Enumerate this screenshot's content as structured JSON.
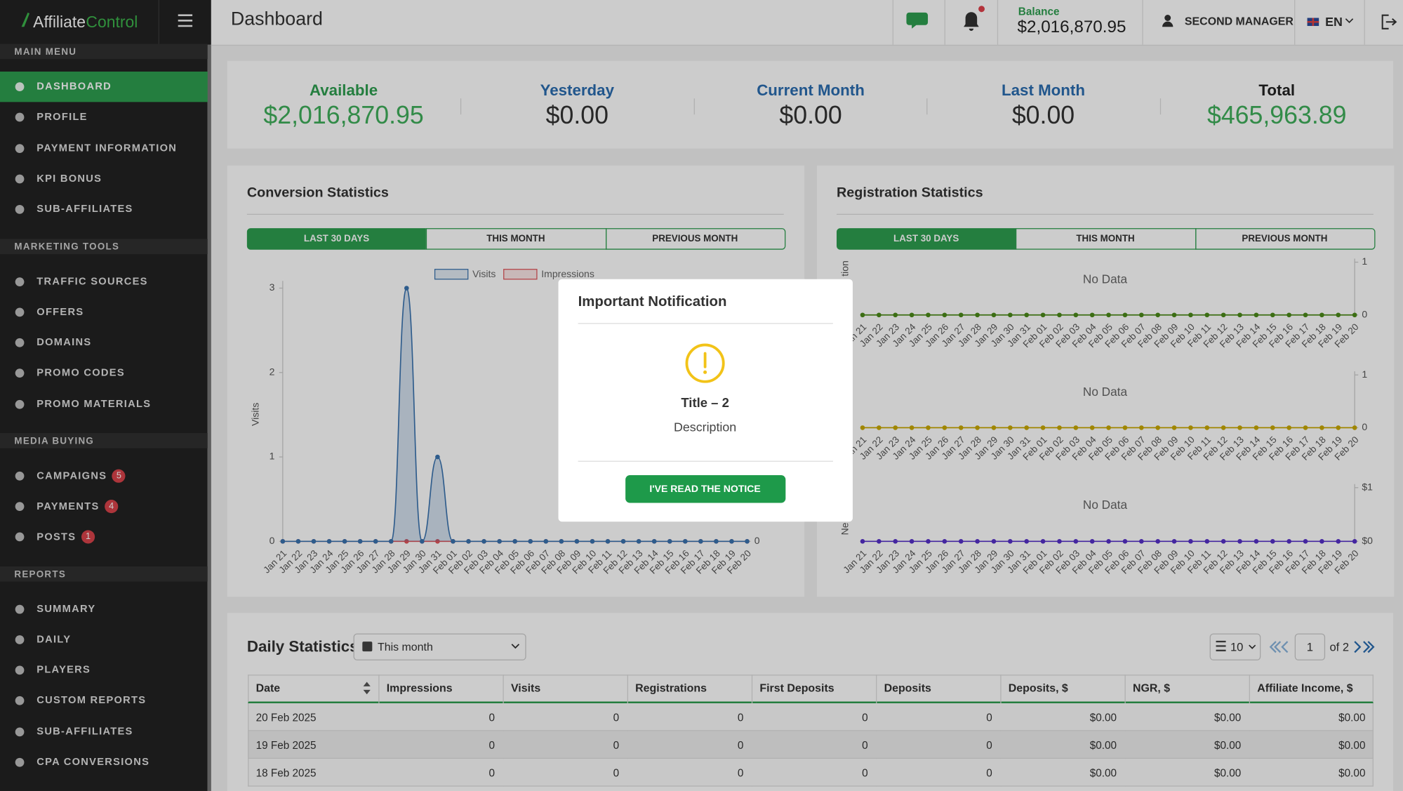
{
  "header": {
    "brand": "Affiliate",
    "brand_accent": "Control",
    "page_title": "Dashboard",
    "balance_label": "Balance",
    "balance": "$2,016,870.95",
    "user": "SECOND MANAGER",
    "language": "EN"
  },
  "sidebar": {
    "sections": [
      {
        "title": "MAIN MENU",
        "items": [
          {
            "label": "DASHBOARD"
          },
          {
            "label": "PROFILE"
          },
          {
            "label": "PAYMENT INFORMATION"
          },
          {
            "label": "KPI BONUS"
          },
          {
            "label": "SUB-AFFILIATES"
          }
        ]
      },
      {
        "title": "MARKETING TOOLS",
        "items": [
          {
            "label": "TRAFFIC SOURCES"
          },
          {
            "label": "OFFERS"
          },
          {
            "label": "DOMAINS"
          },
          {
            "label": "PROMO CODES"
          },
          {
            "label": "PROMO MATERIALS"
          }
        ]
      },
      {
        "title": "MEDIA BUYING",
        "items": [
          {
            "label": "CAMPAIGNS",
            "badge": 5
          },
          {
            "label": "PAYMENTS",
            "badge": 4
          },
          {
            "label": "POSTS",
            "badge": 1
          }
        ]
      },
      {
        "title": "REPORTS",
        "items": [
          {
            "label": "SUMMARY"
          },
          {
            "label": "DAILY"
          },
          {
            "label": "PLAYERS"
          },
          {
            "label": "CUSTOM REPORTS"
          },
          {
            "label": "SUB-AFFILIATES"
          },
          {
            "label": "CPA CONVERSIONS"
          }
        ]
      }
    ]
  },
  "summary": [
    {
      "label": "Available",
      "value": "$2,016,870.95"
    },
    {
      "label": "Yesterday",
      "value": "$0.00"
    },
    {
      "label": "Current Month",
      "value": "$0.00"
    },
    {
      "label": "Last Month",
      "value": "$0.00"
    },
    {
      "label": "Total",
      "value": "$465,963.89"
    }
  ],
  "conversion": {
    "title": "Conversion Statistics",
    "tabs": [
      "LAST 30 DAYS",
      "THIS MONTH",
      "PREVIOUS MONTH"
    ],
    "chart": {
      "type": "line",
      "ylabel": "Visits",
      "x": [
        "Jan 21",
        "Jan 22",
        "Jan 23",
        "Jan 24",
        "Jan 25",
        "Jan 26",
        "Jan 27",
        "Jan 28",
        "Jan 29",
        "Jan 30",
        "Jan 31",
        "Feb 01",
        "Feb 02",
        "Feb 03",
        "Feb 04",
        "Feb 05",
        "Feb 06",
        "Feb 07",
        "Feb 08",
        "Feb 09",
        "Feb 10",
        "Feb 11",
        "Feb 12",
        "Feb 13",
        "Feb 14",
        "Feb 15",
        "Feb 16",
        "Feb 17",
        "Feb 18",
        "Feb 19",
        "Feb 20"
      ],
      "series": [
        {
          "name": "Visits",
          "color": "#3a73b0",
          "values": [
            0,
            0,
            0,
            0,
            0,
            0,
            0,
            0,
            3,
            0,
            1,
            0,
            0,
            0,
            0,
            0,
            0,
            0,
            0,
            0,
            0,
            0,
            0,
            0,
            0,
            0,
            0,
            0,
            0,
            0,
            0
          ]
        },
        {
          "name": "Impressions",
          "color": "#e0555a",
          "axis": "y2",
          "values": [
            0,
            0,
            0,
            0,
            0,
            0,
            0,
            0,
            0,
            0,
            0,
            0,
            0,
            0,
            0,
            0,
            0,
            0,
            0,
            0,
            0,
            0,
            0,
            0,
            0,
            0,
            0,
            0,
            0,
            0,
            0
          ]
        }
      ],
      "ylim": [
        0,
        3
      ],
      "yticks": [
        0,
        1,
        2,
        3
      ],
      "y2lim": [
        0,
        1
      ],
      "y2ticks": [
        0
      ]
    }
  },
  "registration": {
    "title": "Registration Statistics",
    "tabs": [
      "LAST 30 DAYS",
      "THIS MONTH",
      "PREVIOUS MONTH"
    ],
    "x": [
      "Jan 21",
      "Jan 22",
      "Jan 23",
      "Jan 24",
      "Jan 25",
      "Jan 26",
      "Jan 27",
      "Jan 28",
      "Jan 29",
      "Jan 30",
      "Jan 31",
      "Feb 01",
      "Feb 02",
      "Feb 03",
      "Feb 04",
      "Feb 05",
      "Feb 06",
      "Feb 07",
      "Feb 08",
      "Feb 09",
      "Feb 10",
      "Feb 11",
      "Feb 12",
      "Feb 13",
      "Feb 14",
      "Feb 15",
      "Feb 16",
      "Feb 17",
      "Feb 18",
      "Feb 19",
      "Feb 20"
    ],
    "charts": [
      {
        "type": "line",
        "no_data": "No Data",
        "ylabel": "tion",
        "color": "#4b8a1a",
        "values": [
          0,
          0,
          0,
          0,
          0,
          0,
          0,
          0,
          0,
          0,
          0,
          0,
          0,
          0,
          0,
          0,
          0,
          0,
          0,
          0,
          0,
          0,
          0,
          0,
          0,
          0,
          0,
          0,
          0,
          0,
          0
        ],
        "ylim": [
          0,
          1
        ],
        "yticks": [
          0,
          1
        ]
      },
      {
        "type": "line",
        "no_data": "No Data",
        "color": "#c9a800",
        "values": [
          0,
          0,
          0,
          0,
          0,
          0,
          0,
          0,
          0,
          0,
          0,
          0,
          0,
          0,
          0,
          0,
          0,
          0,
          0,
          0,
          0,
          0,
          0,
          0,
          0,
          0,
          0,
          0,
          0,
          0,
          0
        ],
        "ylim": [
          0,
          1
        ],
        "yticks": [
          0,
          1
        ]
      },
      {
        "type": "line",
        "no_data": "No Data",
        "ylabel": "Ne",
        "color": "#5630c8",
        "values": [
          0,
          0,
          0,
          0,
          0,
          0,
          0,
          0,
          0,
          0,
          0,
          0,
          0,
          0,
          0,
          0,
          0,
          0,
          0,
          0,
          0,
          0,
          0,
          0,
          0,
          0,
          0,
          0,
          0,
          0,
          0
        ],
        "ylim": [
          0,
          1
        ],
        "yticks": [
          {
            "value": 0,
            "label": "$0"
          },
          {
            "value": 1,
            "label": "$1"
          }
        ]
      }
    ]
  },
  "daily": {
    "title": "Daily Statistics",
    "period": "This month",
    "page_size": "10",
    "page": "1",
    "page_of": "of 2",
    "columns": [
      "Date",
      "Impressions",
      "Visits",
      "Registrations",
      "First Deposits",
      "Deposits",
      "Deposits, $",
      "NGR, $",
      "Affiliate Income, $"
    ],
    "rows": [
      [
        "20 Feb 2025",
        0,
        0,
        0,
        0,
        0,
        "$0.00",
        "$0.00",
        "$0.00"
      ],
      [
        "19 Feb 2025",
        0,
        0,
        0,
        0,
        0,
        "$0.00",
        "$0.00",
        "$0.00"
      ],
      [
        "18 Feb 2025",
        0,
        0,
        0,
        0,
        0,
        "$0.00",
        "$0.00",
        "$0.00"
      ]
    ]
  },
  "modal": {
    "title": "Important Notification",
    "item_title": "Title – 2",
    "description": "Description",
    "button": "I'VE READ THE NOTICE"
  }
}
